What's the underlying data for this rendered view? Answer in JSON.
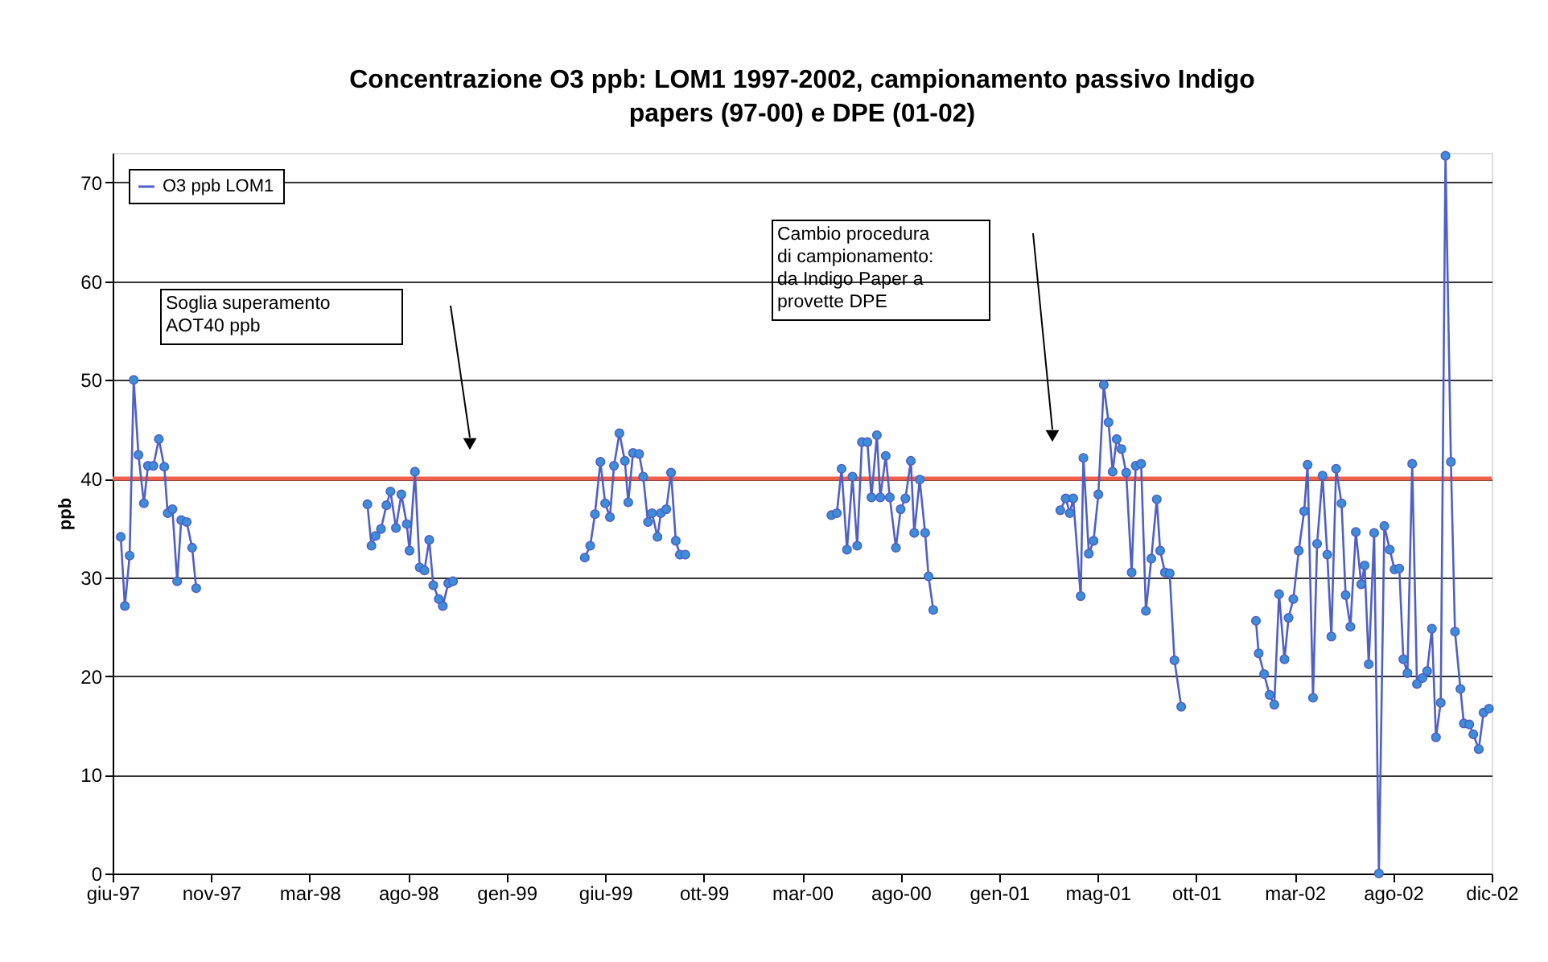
{
  "chart_data": {
    "type": "line",
    "title": "Concentrazione O3 ppb: LOM1 1997-2002, campionamento passivo Indigo papers (97-00) e DPE (01-02)",
    "ylabel": "ppb",
    "xlim": [
      "1997-06-10",
      "2002-12-31"
    ],
    "ylim": [
      0,
      73
    ],
    "yticks": [
      0,
      10,
      20,
      30,
      40,
      50,
      60,
      70
    ],
    "xticks": [
      {
        "value": "1997-06-10",
        "label": "giu-97"
      },
      {
        "value": "1997-11-02",
        "label": "nov-97"
      },
      {
        "value": "1998-03-27",
        "label": "mar-98"
      },
      {
        "value": "1998-08-19",
        "label": "ago-98"
      },
      {
        "value": "1999-01-11",
        "label": "gen-99"
      },
      {
        "value": "1999-06-05",
        "label": "giu-99"
      },
      {
        "value": "1999-10-28",
        "label": "ott-99"
      },
      {
        "value": "2000-03-21",
        "label": "mar-00"
      },
      {
        "value": "2000-08-13",
        "label": "ago-00"
      },
      {
        "value": "2001-01-05",
        "label": "gen-01"
      },
      {
        "value": "2001-05-30",
        "label": "mag-01"
      },
      {
        "value": "2001-10-22",
        "label": "ott-01"
      },
      {
        "value": "2002-03-16",
        "label": "mar-02"
      },
      {
        "value": "2002-08-08",
        "label": "ago-02"
      },
      {
        "value": "2002-12-31",
        "label": "dic-02"
      }
    ],
    "grid": "y",
    "legend": "top left",
    "marker": "circle",
    "line_style": "solid",
    "ref_lines": [
      {
        "axis": "y",
        "value": 40,
        "color": "#f0604a"
      }
    ],
    "annotations": [
      "Soglia superamento AOT40 ppb",
      "Cambio procedura di campionamento: da Indigo Paper a provette DPE"
    ],
    "series": [
      {
        "name": "O3 ppb LOM1",
        "color": "#4f5fc8",
        "x": [
          "1997-06-22",
          "1997-06-28",
          "1997-07-05",
          "1997-07-11",
          "1997-07-18",
          "1997-07-26",
          "1997-08-01",
          "1997-08-09",
          "1997-08-17",
          "1997-08-25",
          "1997-08-30",
          "1997-09-06",
          "1997-09-13",
          "1997-09-19",
          "1997-09-27",
          "1997-10-05",
          "1997-10-11",
          "1998-01-01",
          "1998-06-20",
          "1998-06-26",
          "1998-07-02",
          "1998-07-10",
          "1998-07-18",
          "1998-07-24",
          "1998-08-01",
          "1998-08-09",
          "1998-08-17",
          "1998-08-21",
          "1998-08-29",
          "1998-09-05",
          "1998-09-12",
          "1998-09-19",
          "1998-09-25",
          "1998-10-03",
          "1998-10-09",
          "1998-10-17",
          "1998-10-24",
          "1999-01-01",
          "1999-05-06",
          "1999-05-14",
          "1999-05-21",
          "1999-05-29",
          "1999-06-05",
          "1999-06-12",
          "1999-06-18",
          "1999-06-26",
          "1999-07-04",
          "1999-07-09",
          "1999-07-16",
          "1999-07-25",
          "1999-07-31",
          "1999-08-07",
          "1999-08-13",
          "1999-08-21",
          "1999-08-26",
          "1999-09-03",
          "1999-09-10",
          "1999-09-17",
          "1999-09-23",
          "1999-10-01",
          "2000-01-01",
          "2000-05-03",
          "2000-05-11",
          "2000-05-18",
          "2000-05-26",
          "2000-06-03",
          "2000-06-10",
          "2000-06-17",
          "2000-06-25",
          "2000-07-01",
          "2000-07-09",
          "2000-07-14",
          "2000-07-22",
          "2000-07-28",
          "2000-08-06",
          "2000-08-13",
          "2000-08-20",
          "2000-08-28",
          "2000-09-02",
          "2000-09-10",
          "2000-09-18",
          "2000-09-23",
          "2000-09-30",
          "2001-01-01",
          "2001-04-05",
          "2001-04-13",
          "2001-04-19",
          "2001-04-24",
          "2001-05-05",
          "2001-05-09",
          "2001-05-17",
          "2001-05-24",
          "2001-05-31",
          "2001-06-08",
          "2001-06-15",
          "2001-06-21",
          "2001-06-27",
          "2001-07-04",
          "2001-07-11",
          "2001-07-19",
          "2001-07-25",
          "2001-08-02",
          "2001-08-09",
          "2001-08-17",
          "2001-08-25",
          "2001-08-30",
          "2001-09-06",
          "2001-09-13",
          "2001-09-20",
          "2001-09-30",
          "2001-12-01",
          "2002-01-18",
          "2002-01-22",
          "2002-01-30",
          "2002-02-07",
          "2002-02-14",
          "2002-02-21",
          "2002-03-01",
          "2002-03-07",
          "2002-03-14",
          "2002-03-22",
          "2002-03-30",
          "2002-04-04",
          "2002-04-12",
          "2002-04-18",
          "2002-04-26",
          "2002-05-03",
          "2002-05-09",
          "2002-05-16",
          "2002-05-24",
          "2002-05-30",
          "2002-06-06",
          "2002-06-14",
          "2002-06-22",
          "2002-06-27",
          "2002-07-03",
          "2002-07-11",
          "2002-07-18",
          "2002-07-26",
          "2002-08-03",
          "2002-08-10",
          "2002-08-17",
          "2002-08-23",
          "2002-08-29",
          "2002-09-05",
          "2002-09-12",
          "2002-09-20",
          "2002-09-27",
          "2002-10-04",
          "2002-10-10",
          "2002-10-17",
          "2002-10-24",
          "2002-11-01",
          "2002-11-07",
          "2002-11-15",
          "2002-11-20",
          "2002-11-28",
          "2002-12-04",
          "2002-12-12",
          "2002-12-19",
          "2002-12-27"
        ],
        "values": [
          34.1,
          27.1,
          32.2,
          50,
          42.4,
          37.5,
          41.3,
          41.3,
          44,
          41.2,
          36.5,
          36.9,
          29.6,
          35.8,
          35.6,
          33,
          28.9,
          null,
          37.4,
          33.2,
          34.2,
          34.9,
          37.3,
          38.7,
          35,
          38.4,
          35.4,
          32.7,
          40.7,
          31,
          30.7,
          33.8,
          29.2,
          27.8,
          27.1,
          29.4,
          29.6,
          null,
          32,
          33.2,
          36.4,
          41.7,
          37.5,
          36.1,
          41.3,
          44.6,
          41.8,
          37.6,
          42.6,
          42.5,
          40.2,
          35.6,
          36.5,
          34.1,
          36.5,
          36.9,
          40.6,
          33.7,
          32.3,
          32.3,
          null,
          36.3,
          36.5,
          41,
          32.8,
          40.2,
          33.2,
          43.7,
          43.7,
          38.1,
          44.4,
          38.1,
          42.3,
          38.1,
          33,
          36.9,
          38,
          41.8,
          34.5,
          39.9,
          34.5,
          30.1,
          26.7,
          null,
          36.8,
          38,
          36.5,
          38,
          28.1,
          42.1,
          32.4,
          33.7,
          38.4,
          49.5,
          45.7,
          40.7,
          44,
          43,
          40.6,
          30.5,
          41.3,
          41.5,
          26.6,
          31.9,
          37.9,
          32.7,
          30.5,
          30.4,
          21.6,
          16.9,
          null,
          25.6,
          22.3,
          20.2,
          18.1,
          17.1,
          28.3,
          21.7,
          25.9,
          27.8,
          32.7,
          36.7,
          41.4,
          17.8,
          33.4,
          40.3,
          32.3,
          24,
          41,
          37.5,
          28.2,
          25,
          34.6,
          29.3,
          31.2,
          21.2,
          34.5,
          0,
          35.2,
          32.8,
          30.8,
          30.9,
          21.7,
          20.3,
          41.5,
          19.2,
          19.8,
          20.5,
          24.8,
          13.8,
          17.3,
          72.7,
          41.7,
          24.5,
          18.7,
          15.2,
          15.1,
          14.1,
          12.6,
          16.3,
          16.7
        ]
      }
    ]
  }
}
